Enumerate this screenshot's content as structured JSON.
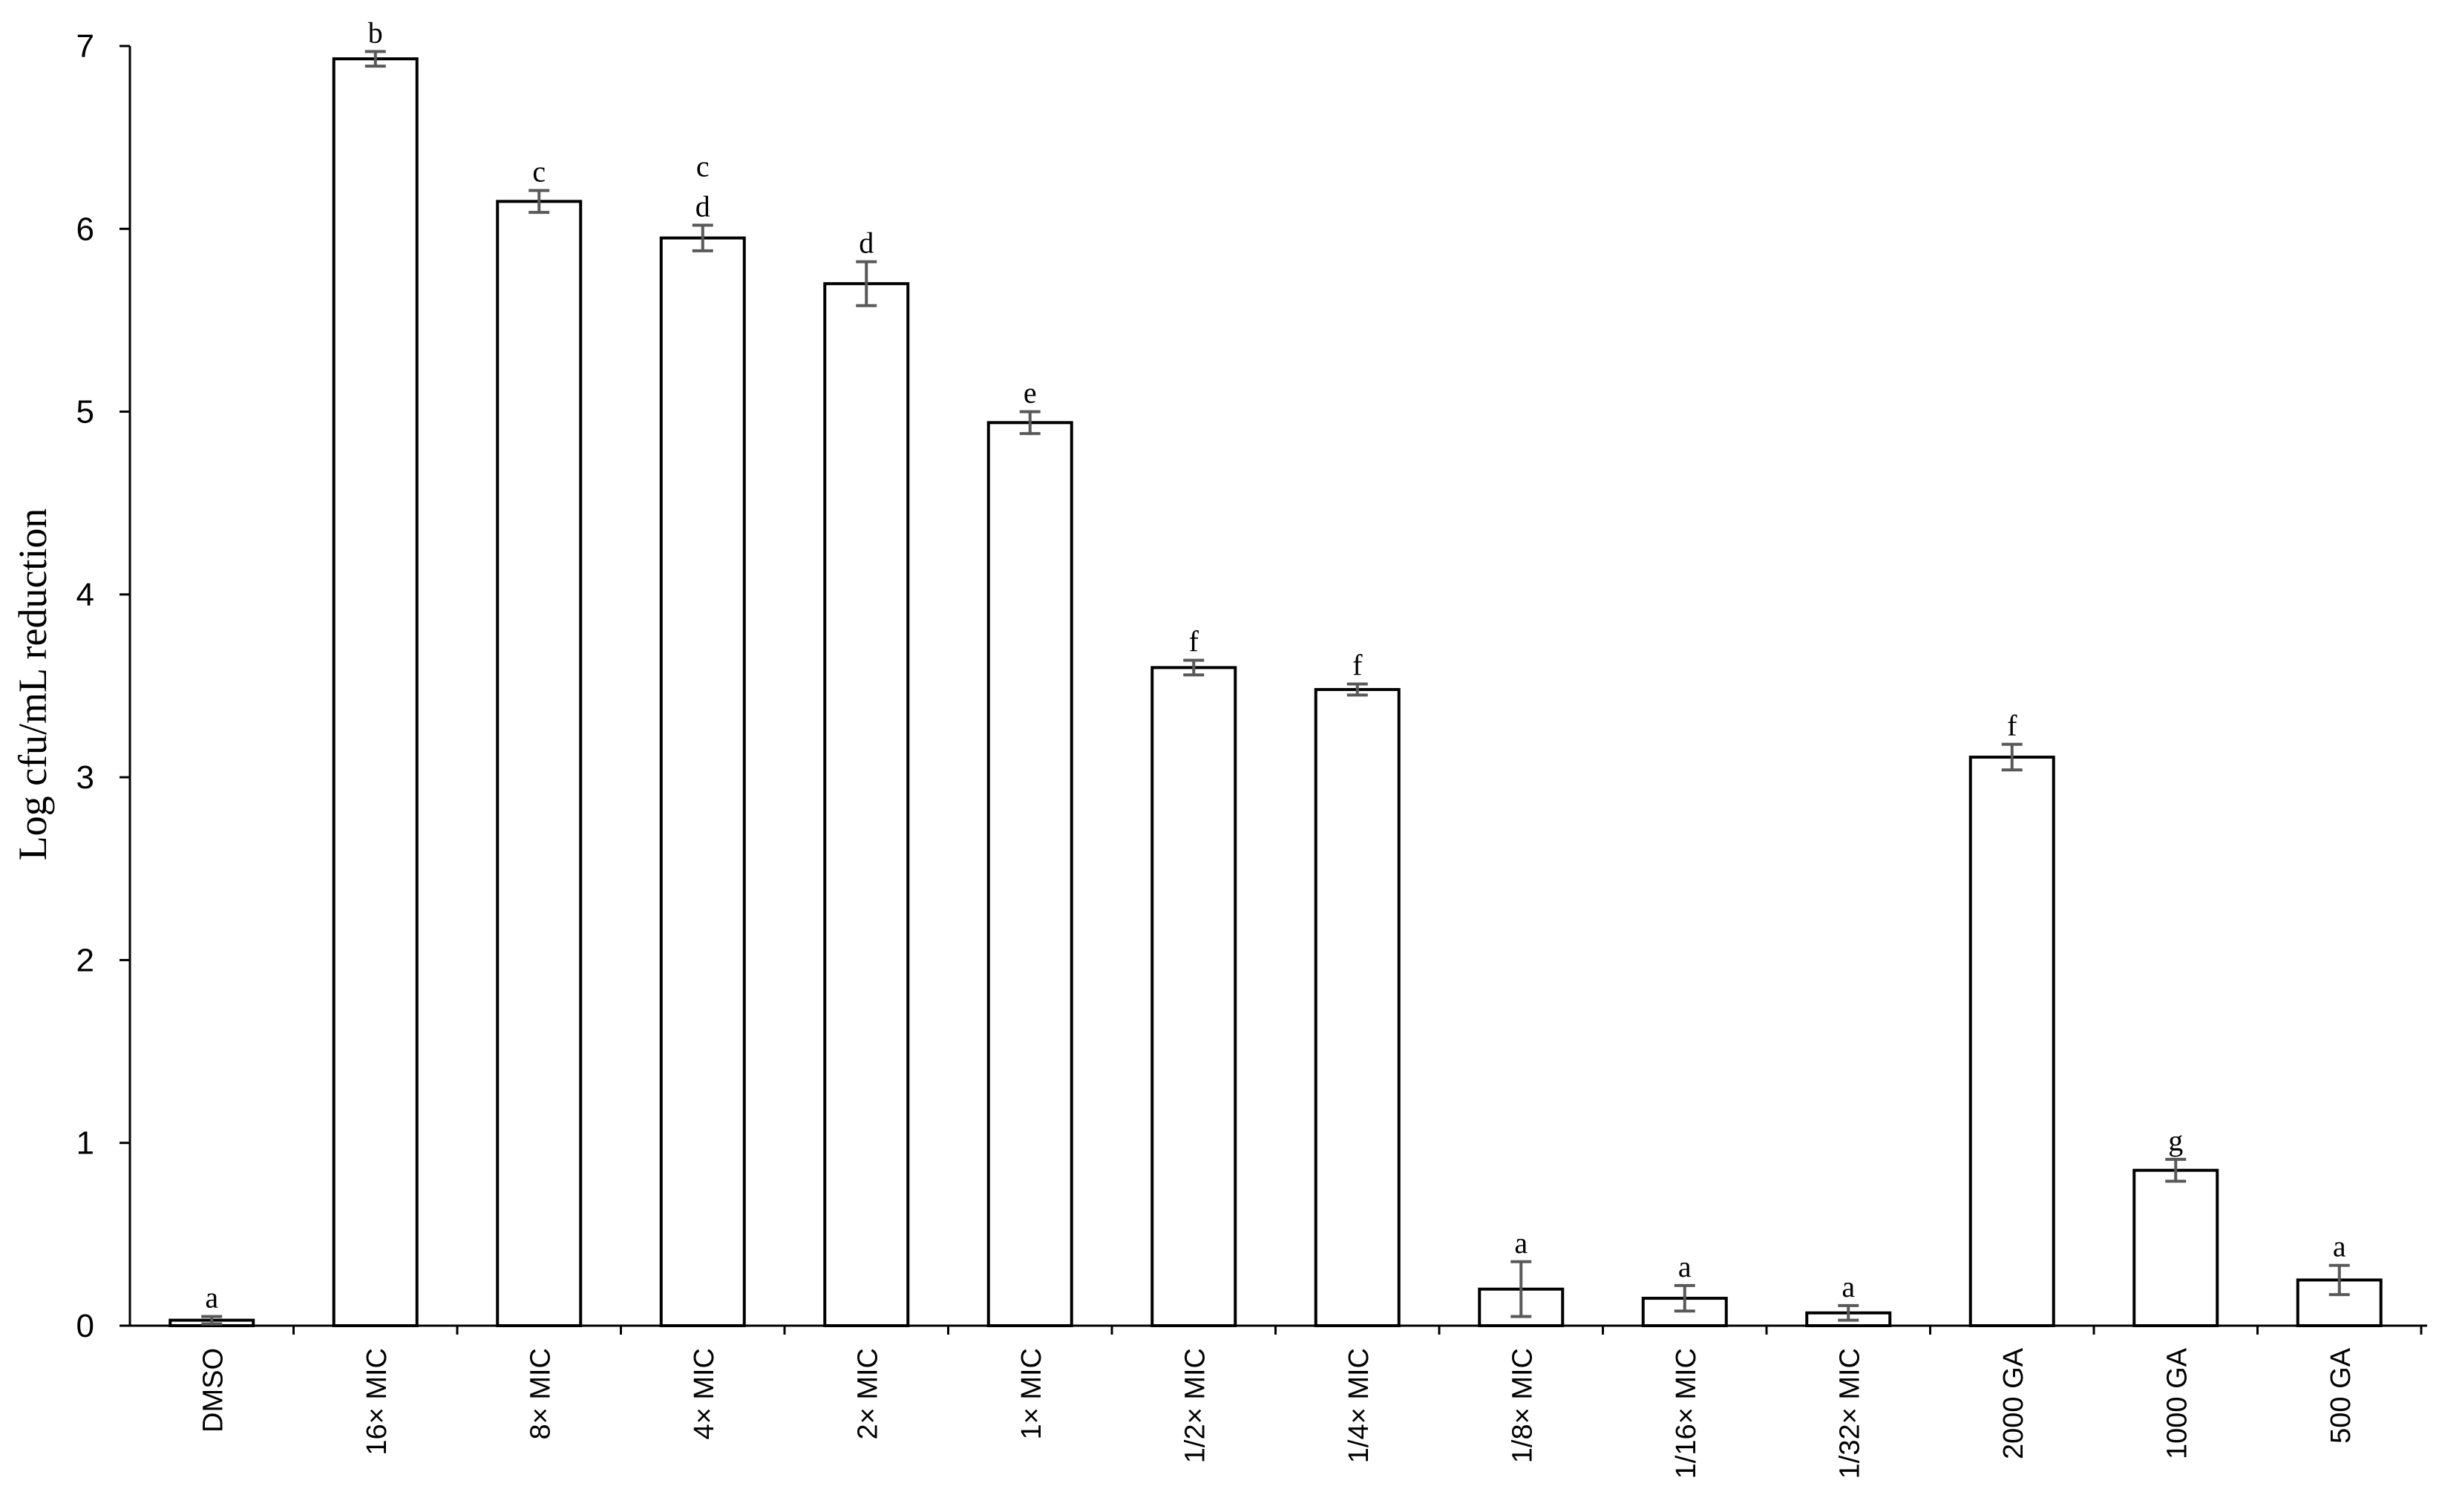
{
  "chart_data": {
    "type": "bar",
    "title": "",
    "xlabel": "",
    "ylabel": "Log cfu/mL reduction",
    "ylim": [
      0,
      7
    ],
    "yticks": [
      0,
      1,
      2,
      3,
      4,
      5,
      6,
      7
    ],
    "grid": false,
    "legend": "none",
    "bar_color": "#ffffff",
    "edge_color": "#000000",
    "error_color": "#595959",
    "categories": [
      "DMSO",
      "16× MIC",
      "8× MIC",
      "4× MIC",
      "2× MIC",
      "1× MIC",
      "1/2× MIC",
      "1/4× MIC",
      "1/8× MIC",
      "1/16× MIC",
      "1/32× MIC",
      "2000 GA",
      "1000 GA",
      "500 GA"
    ],
    "values": [
      0.03,
      6.93,
      6.15,
      5.95,
      5.7,
      4.94,
      3.6,
      3.48,
      0.2,
      0.15,
      0.07,
      3.11,
      0.85,
      0.25
    ],
    "errors": [
      0.02,
      0.04,
      0.06,
      0.07,
      0.12,
      0.06,
      0.04,
      0.03,
      0.15,
      0.07,
      0.04,
      0.07,
      0.06,
      0.08
    ],
    "significance": [
      [
        "a"
      ],
      [
        "b"
      ],
      [
        "c"
      ],
      [
        "c",
        "d"
      ],
      [
        "d"
      ],
      [
        "e"
      ],
      [
        "f"
      ],
      [
        "f"
      ],
      [
        "a"
      ],
      [
        "a"
      ],
      [
        "a"
      ],
      [
        "f"
      ],
      [
        "g"
      ],
      [
        "a"
      ]
    ]
  }
}
